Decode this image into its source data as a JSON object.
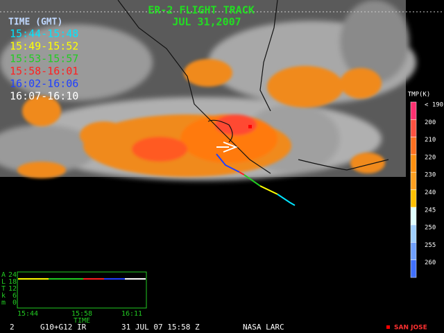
{
  "header": {
    "title": "ER-2 FLIGHT TRACK",
    "date": "JUL 31,2007"
  },
  "time_legend": {
    "title": "TIME (GMT)",
    "entries": [
      {
        "label": "15:44-15:48",
        "color": "#00e5ff"
      },
      {
        "label": "15:49-15:52",
        "color": "#ffff00"
      },
      {
        "label": "15:53-15:57",
        "color": "#22cc22"
      },
      {
        "label": "15:58-16:01",
        "color": "#ff2020"
      },
      {
        "label": "16:02-16:06",
        "color": "#2040ff"
      },
      {
        "label": "16:07-16:10",
        "color": "#ffffff"
      }
    ]
  },
  "colorbar": {
    "title": "TMP(K)",
    "labels": [
      "< 190",
      "200",
      "210",
      "220",
      "230",
      "240",
      "245",
      "250",
      "255",
      "260"
    ]
  },
  "altitude_plot": {
    "axis_title": [
      "A",
      "L",
      "T",
      "k",
      "m"
    ],
    "yticks": [
      "24",
      "18",
      "12",
      "6",
      "0"
    ],
    "xticks": [
      "15:44",
      "15:58",
      "16:11"
    ],
    "xlabel": "TIME"
  },
  "footer": {
    "frame": "2",
    "sensor": "G10+G12 IR",
    "datetime": "31 JUL 07 15:58 Z",
    "source": "NASA LARC",
    "marker": "SAN JOSE"
  }
}
